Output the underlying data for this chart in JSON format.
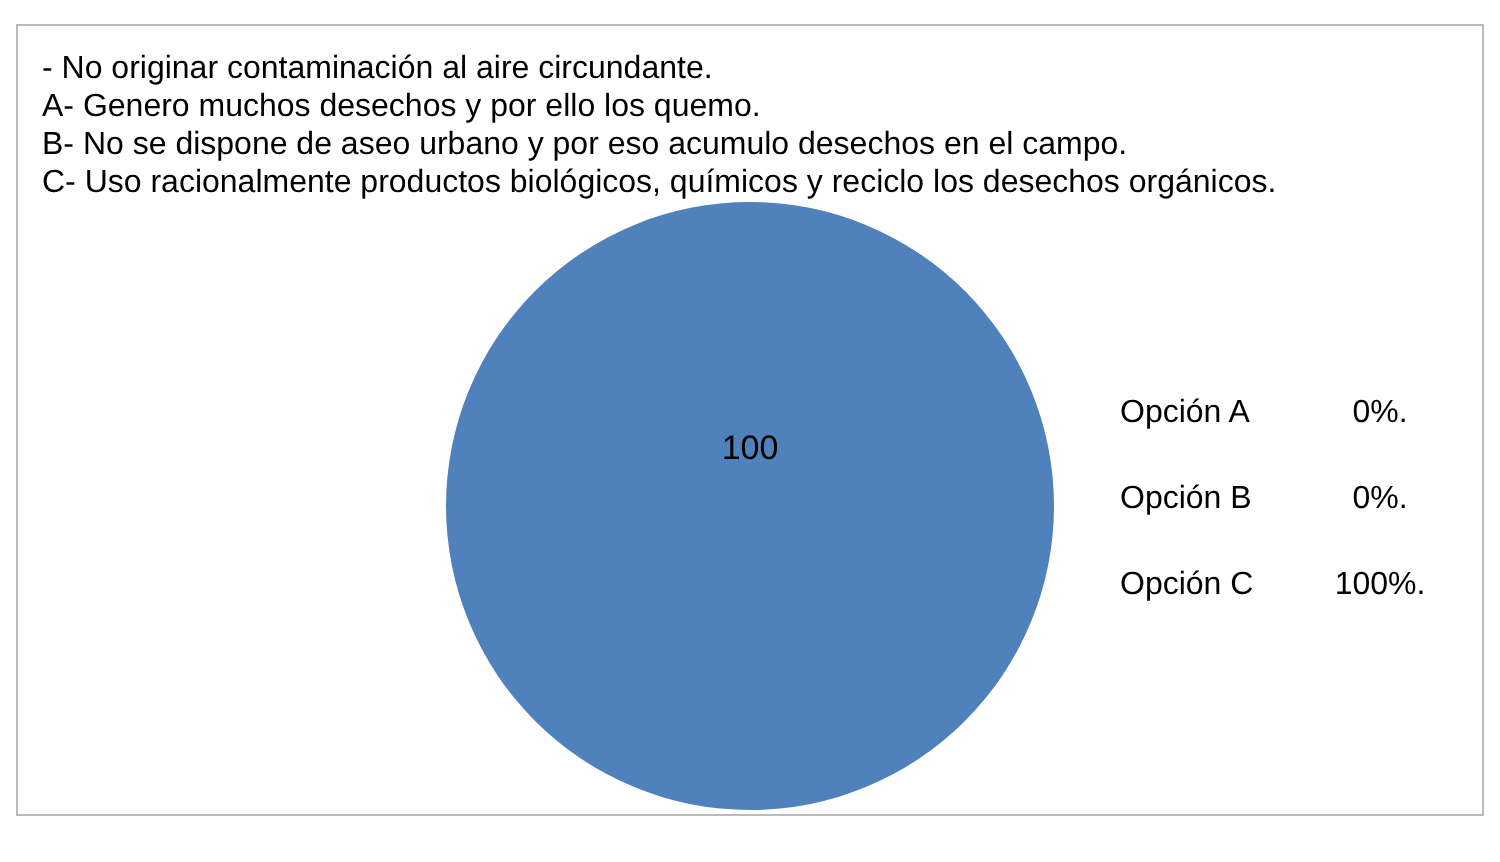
{
  "chart_data": {
    "type": "pie",
    "annotations": [
      "- No originar contaminación al aire circundante.",
      "A- Genero muchos desechos y por ello los quemo.",
      "B- No se dispone de aseo urbano y por eso acumulo desechos en el campo.",
      "C- Uso racionalmente productos biológicos, químicos y reciclo los desechos orgánicos.",
      "0%.",
      "0%.",
      "100%."
    ],
    "categories": [
      "Opción A",
      "Opción B",
      "Opción C"
    ],
    "values": [
      0,
      0,
      100
    ],
    "colors": [
      "#c0504d",
      "#9bbb59",
      "#4f81bd"
    ],
    "value_labels": [
      null,
      null,
      "100"
    ]
  }
}
